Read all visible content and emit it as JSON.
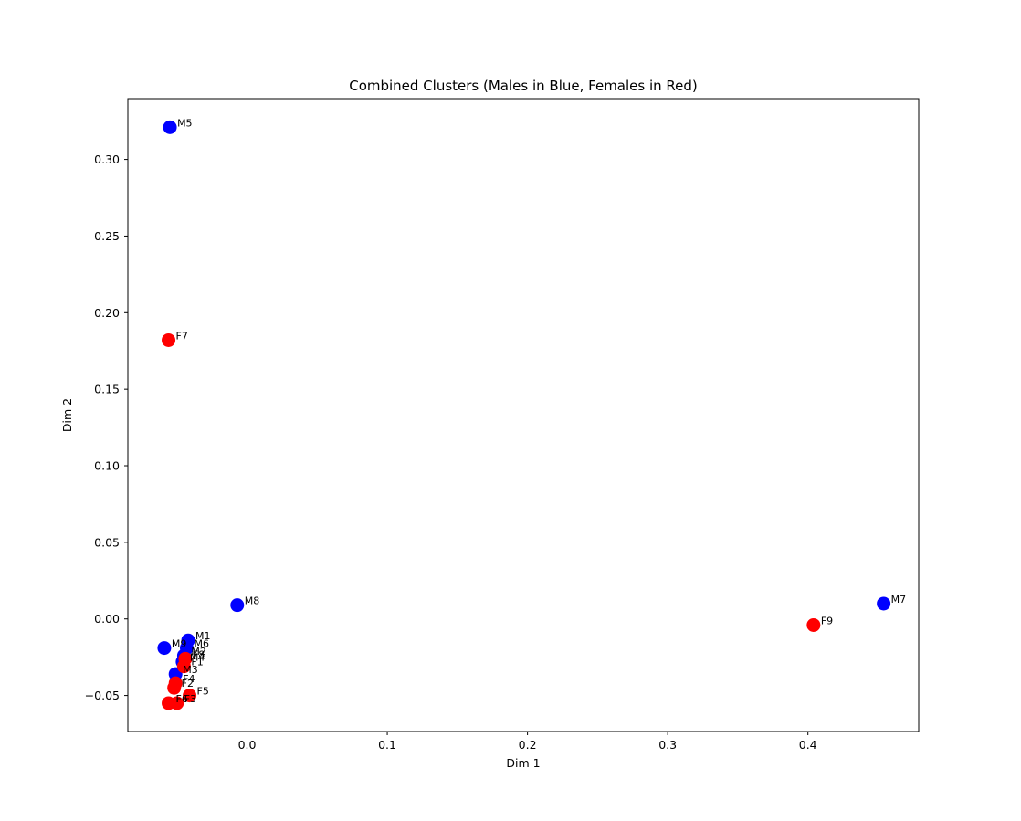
{
  "chart_data": {
    "type": "scatter",
    "title": "Combined Clusters (Males in Blue, Females in Red)",
    "xlabel": "Dim 1",
    "ylabel": "Dim 2",
    "xlim": [
      -0.085,
      0.479
    ],
    "ylim": [
      -0.0735,
      0.3397
    ],
    "xticks": [
      0.0,
      0.1,
      0.2,
      0.3,
      0.4
    ],
    "xtick_labels": [
      "0.0",
      "0.1",
      "0.2",
      "0.3",
      "0.4"
    ],
    "yticks": [
      -0.05,
      0.0,
      0.05,
      0.1,
      0.15,
      0.2,
      0.25,
      0.3
    ],
    "ytick_labels": [
      "−0.05",
      "0.00",
      "0.05",
      "0.10",
      "0.15",
      "0.20",
      "0.25",
      "0.30"
    ],
    "grid": false,
    "legend": "none",
    "series": [
      {
        "color": "#0000ff",
        "points": [
          {
            "label": "M5",
            "x": -0.055,
            "y": 0.321
          },
          {
            "label": "M8",
            "x": -0.007,
            "y": 0.009
          },
          {
            "label": "M7",
            "x": 0.454,
            "y": 0.01
          },
          {
            "label": "M1",
            "x": -0.042,
            "y": -0.014
          },
          {
            "label": "M9",
            "x": -0.059,
            "y": -0.019
          },
          {
            "label": "M6",
            "x": -0.043,
            "y": -0.019
          },
          {
            "label": "M2",
            "x": -0.045,
            "y": -0.024
          },
          {
            "label": "M4",
            "x": -0.046,
            "y": -0.028
          },
          {
            "label": "M3",
            "x": -0.051,
            "y": -0.036
          }
        ]
      },
      {
        "color": "#ff0000",
        "points": [
          {
            "label": "F7",
            "x": -0.056,
            "y": 0.182
          },
          {
            "label": "F9",
            "x": 0.404,
            "y": -0.004
          },
          {
            "label": "F8",
            "x": -0.044,
            "y": -0.026
          },
          {
            "label": "F1",
            "x": -0.045,
            "y": -0.031
          },
          {
            "label": "F4",
            "x": -0.051,
            "y": -0.042
          },
          {
            "label": "F2",
            "x": -0.052,
            "y": -0.045
          },
          {
            "label": "F5",
            "x": -0.041,
            "y": -0.05
          },
          {
            "label": "F3",
            "x": -0.05,
            "y": -0.055
          },
          {
            "label": "F6",
            "x": -0.056,
            "y": -0.055
          }
        ]
      }
    ]
  }
}
